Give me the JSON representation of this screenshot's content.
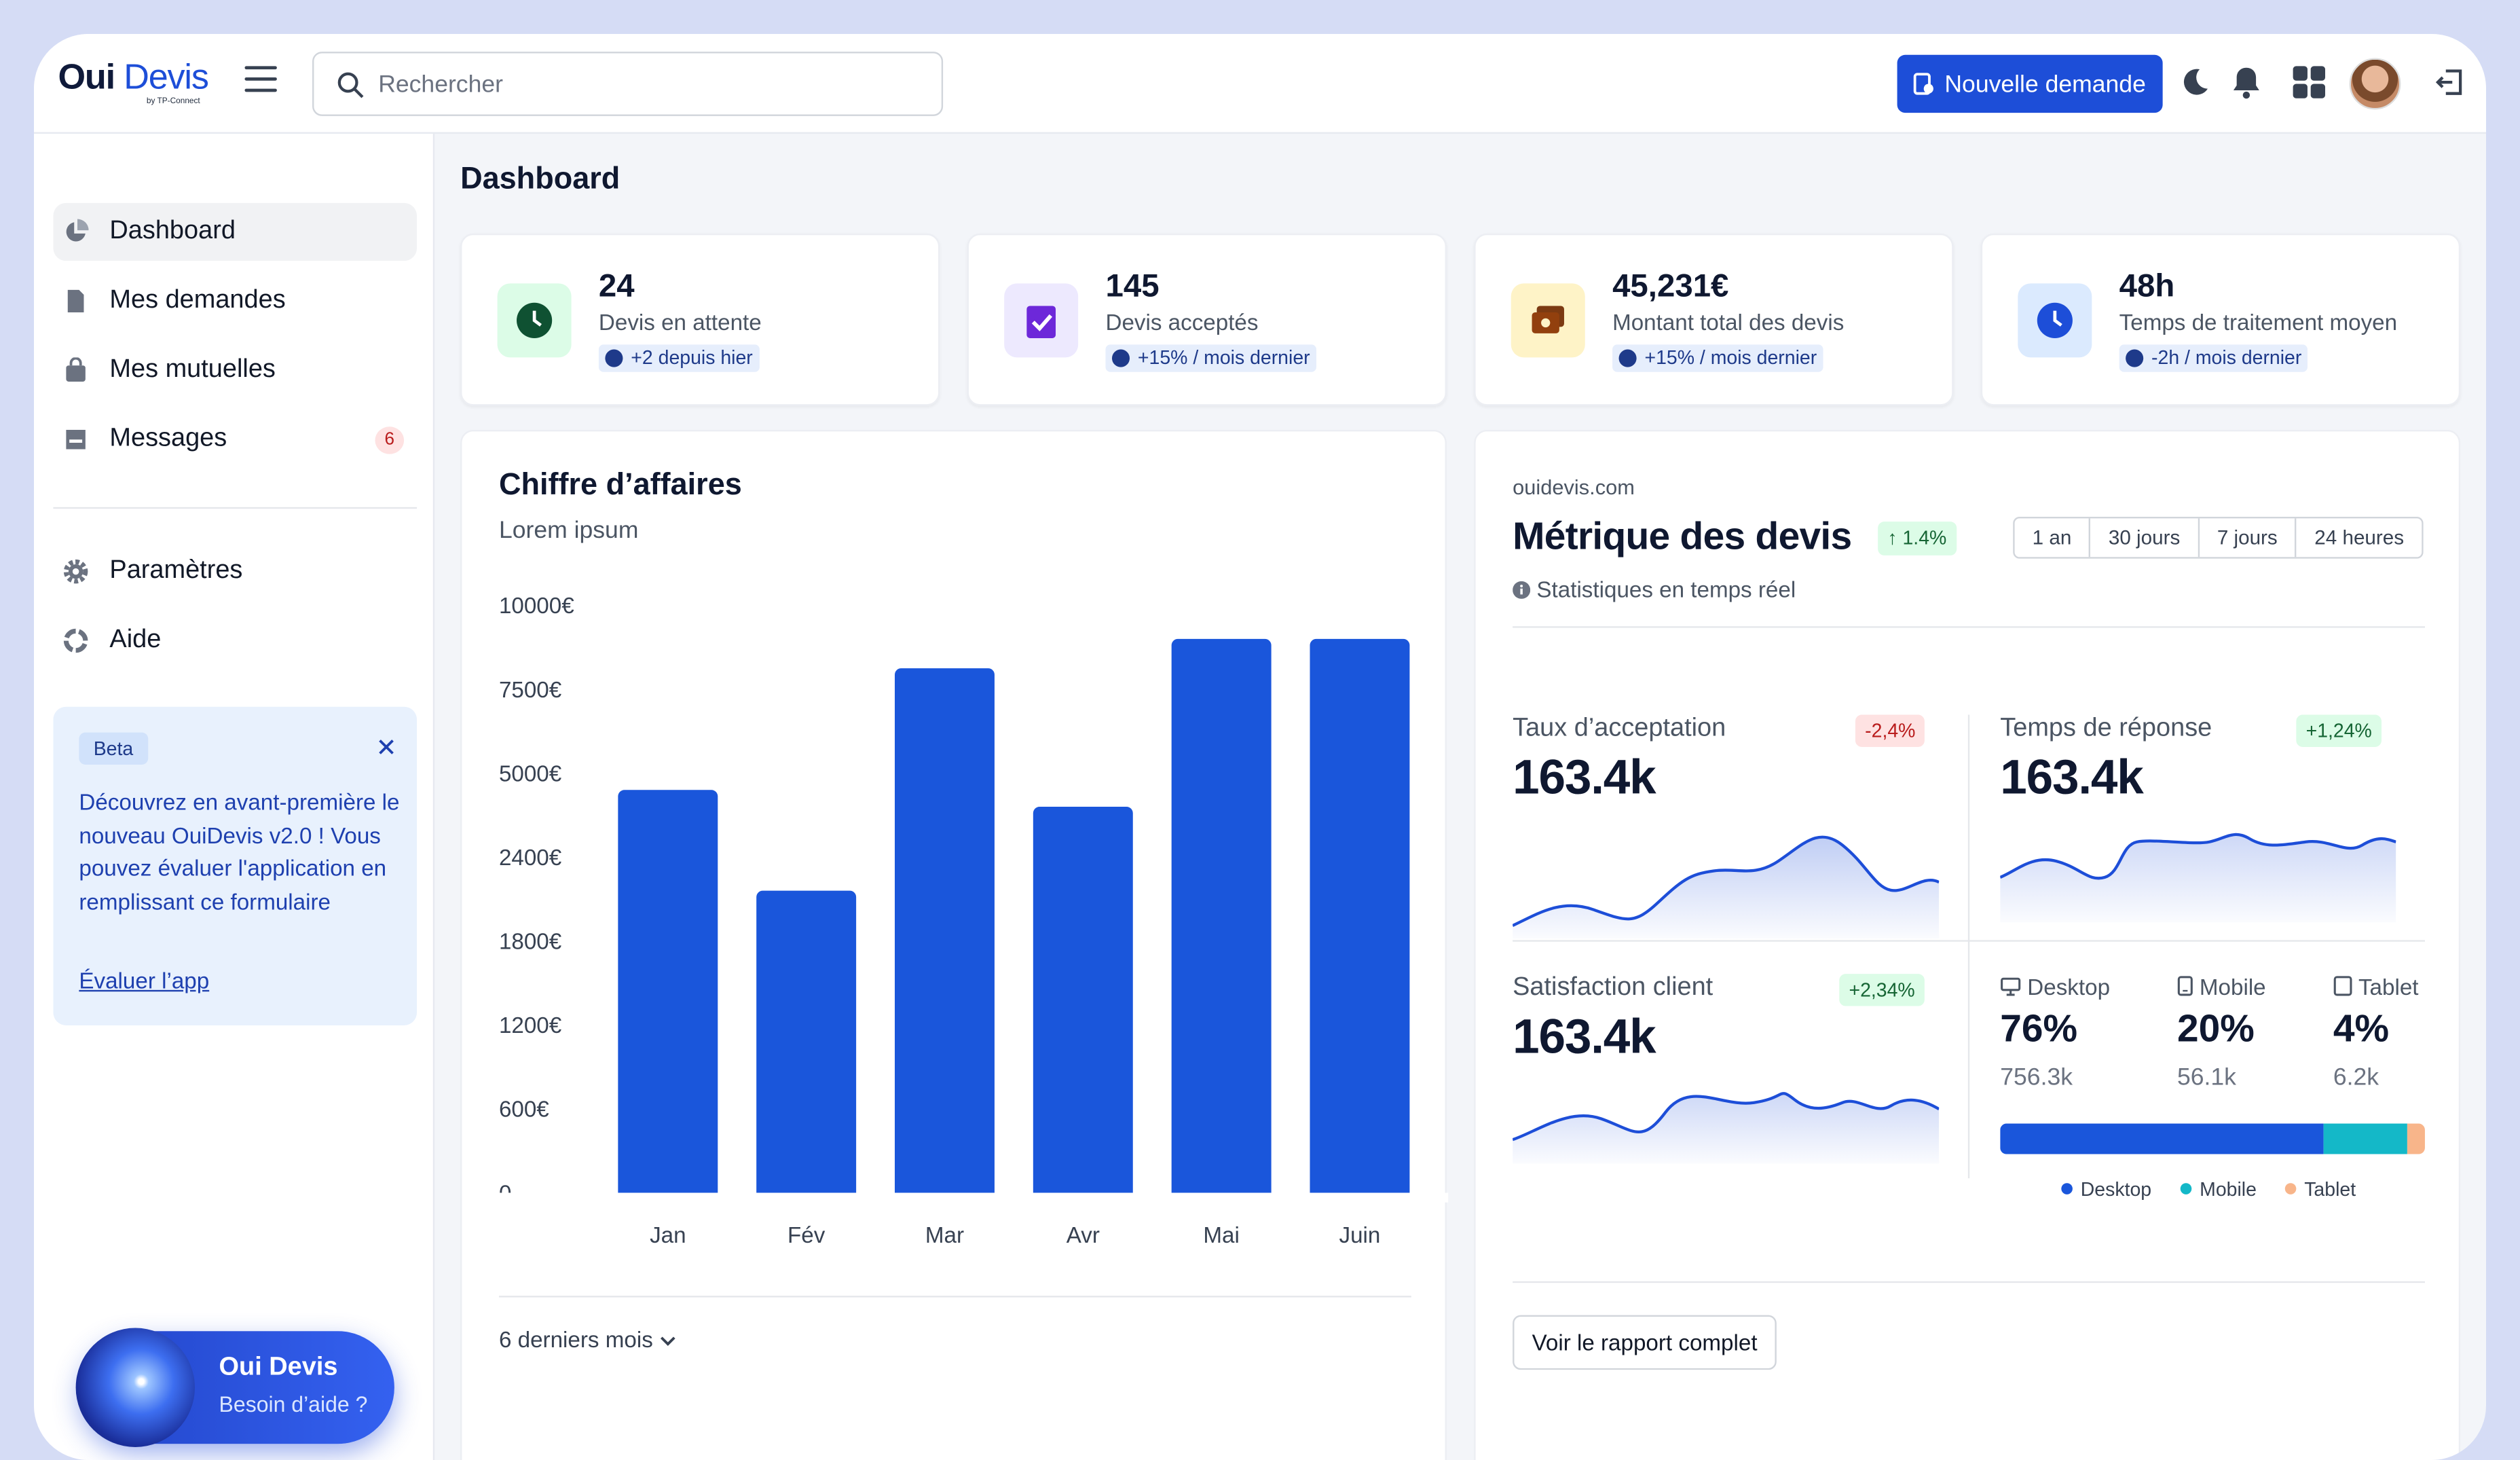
{
  "app": {
    "logo_main": "Oui",
    "logo_accent": "Devis",
    "logo_sub": "by TP-Connect"
  },
  "topbar": {
    "search_placeholder": "Rechercher",
    "new_request_label": "Nouvelle demande"
  },
  "sidebar": {
    "items": [
      {
        "label": "Dashboard",
        "icon": "pie-chart-icon"
      },
      {
        "label": "Mes demandes",
        "icon": "document-icon"
      },
      {
        "label": "Mes mutuelles",
        "icon": "bag-icon"
      },
      {
        "label": "Messages",
        "icon": "inbox-icon",
        "badge": "6"
      },
      {
        "label": "Paramètres",
        "icon": "gear-icon"
      },
      {
        "label": "Aide",
        "icon": "lifebuoy-icon"
      }
    ],
    "beta": {
      "badge": "Beta",
      "text": "Découvrez en avant-première le nouveau OuiDevis v2.0 ! Vous pouvez évaluer l'application en remplissant ce formulaire",
      "link": "Évaluer l’app"
    },
    "helper": {
      "title": "Oui Devis",
      "subtitle": "Besoin d’aide ?"
    }
  },
  "page": {
    "title": "Dashboard"
  },
  "stats": [
    {
      "value": "24",
      "label": "Devis en attente",
      "delta": "+2 depuis hier",
      "icon": "clock-icon"
    },
    {
      "value": "145",
      "label": "Devis acceptés",
      "delta": "+15% / mois dernier",
      "icon": "clipboard-check-icon"
    },
    {
      "value": "45,231€",
      "label": "Montant total des devis",
      "delta": "+15% / mois dernier",
      "icon": "wallet-icon"
    },
    {
      "value": "48h",
      "label": "Temps de traitement moyen",
      "delta": "-2h / mois dernier",
      "icon": "clock-icon"
    }
  ],
  "revenue": {
    "title": "Chiffre d’affaires",
    "subtitle": "Lorem ipsum",
    "footer": "6 derniers mois"
  },
  "chart_data": {
    "type": "bar",
    "categories": [
      "Jan",
      "Fév",
      "Mar",
      "Avr",
      "Mai",
      "Juin"
    ],
    "y_ticks": [
      "10000€",
      "7500€",
      "5000€",
      "2400€",
      "1800€",
      "1200€",
      "600€",
      "0"
    ],
    "values": [
      4.8,
      3.6,
      6.25,
      4.6,
      6.6,
      6.6
    ],
    "value_note": "values are positions on the printed tick scale (tick index from 0 to 7), as the axis is non-linear",
    "color": "#1a56db"
  },
  "metrics": {
    "site": "ouidevis.com",
    "title": "Métrique des devis",
    "trend": "↑ 1.4%",
    "subtitle": "Statistiques en temps réel",
    "ranges": [
      "1 an",
      "30 jours",
      "7 jours",
      "24 heures"
    ],
    "kpis": [
      {
        "label": "Taux d’acceptation",
        "value": "163.4k",
        "delta": "-2,4%",
        "trend": "negative"
      },
      {
        "label": "Temps de réponse",
        "value": "163.4k",
        "delta": "+1,24%",
        "trend": "positive"
      },
      {
        "label": "Satisfaction client",
        "value": "163.4k",
        "delta": "+2,34%",
        "trend": "positive"
      }
    ],
    "devices": [
      {
        "label": "Desktop",
        "pct": "76%",
        "count": "756.3k",
        "share": 76,
        "color": "#1a56db",
        "icon": "monitor-icon"
      },
      {
        "label": "Mobile",
        "pct": "20%",
        "count": "56.1k",
        "share": 20,
        "color": "#14b8c8",
        "icon": "phone-icon"
      },
      {
        "label": "Tablet",
        "pct": "4%",
        "count": "6.2k",
        "share": 4,
        "color": "#f8b58a",
        "icon": "tablet-icon"
      }
    ],
    "report_button": "Voir le rapport complet"
  }
}
